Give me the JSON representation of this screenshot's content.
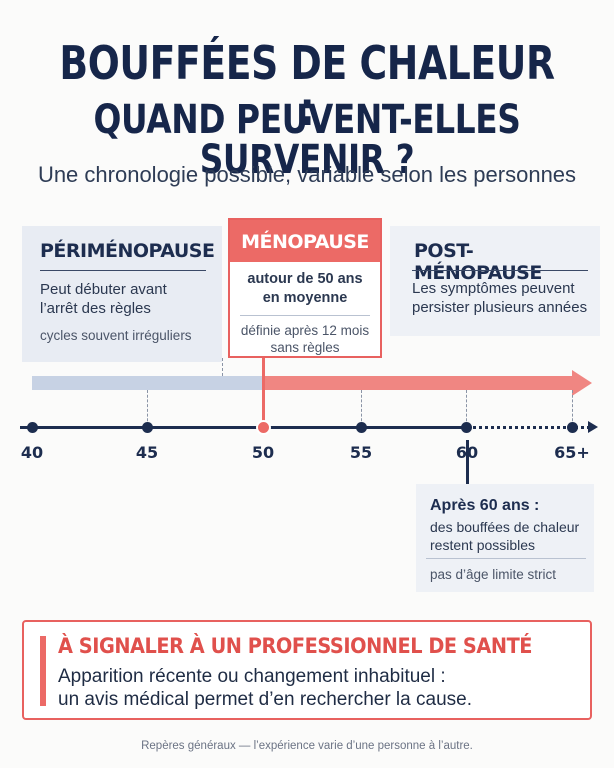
{
  "header": {
    "title_line1": "BOUFFÉES DE CHALEUR :",
    "title_line2": "QUAND PEUVENT-ELLES SURVENIR ?",
    "subtitle": "Une chronologie possible, variable selon les personnes"
  },
  "phases": {
    "perimenopause": {
      "title": "PÉRIMÉNOPAUSE",
      "line1": "Peut débuter avant",
      "line2": "l’arrêt des règles",
      "note": "cycles souvent irréguliers"
    },
    "menopause": {
      "title": "MÉNOPAUSE",
      "line1": "autour de 50 ans",
      "line2": "en moyenne",
      "note1": "définie après 12 mois",
      "note2": "sans règles"
    },
    "postmenopause": {
      "title": "POST-MÉNOPAUSE",
      "line1": "Les symptômes peuvent",
      "line2": "persister plusieurs années"
    }
  },
  "timeline": {
    "ticks": [
      "40",
      "45",
      "50",
      "55",
      "60",
      "65+"
    ],
    "highlight_tick": "50",
    "colors": {
      "peri_bar": "#c7d2e4",
      "post_bar": "#f08682",
      "accent": "#ec6a66",
      "axis": "#1d2d4f"
    }
  },
  "after60": {
    "title": "Après 60 ans :",
    "line1": "des bouffées de chaleur",
    "line2": "restent possibles",
    "note": "pas d’âge limite strict"
  },
  "alert": {
    "title": "À SIGNALER À UN PROFESSIONNEL DE SANTÉ",
    "line1": "Apparition récente ou changement inhabituel :",
    "line2": "un avis médical permet d’en rechercher la cause."
  },
  "footer": "Repères généraux — l’expérience varie d’une personne à l’autre."
}
